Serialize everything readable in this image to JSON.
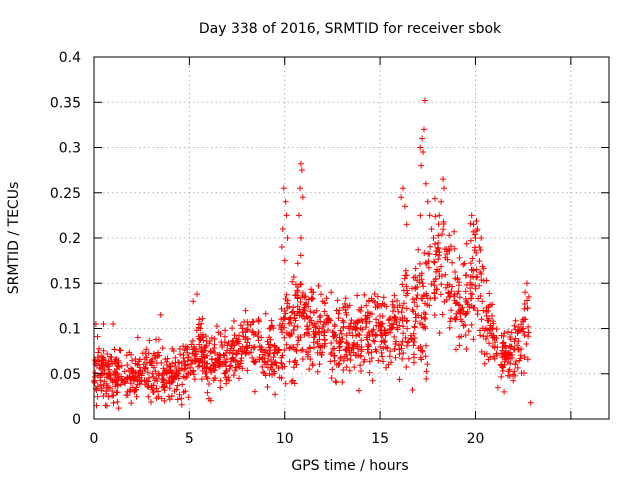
{
  "chart_data": {
    "type": "scatter",
    "title": "Day 338 of 2016, SRMTID for receiver sbok",
    "xlabel": "GPS time / hours",
    "ylabel": "SRMTID / TECUs",
    "xlim": [
      0,
      27
    ],
    "ylim": [
      0,
      0.4
    ],
    "x_ticks": [
      0,
      5,
      10,
      15,
      20
    ],
    "x_tick_labels": [
      "0",
      "5",
      "10",
      "15",
      "20"
    ],
    "y_ticks": [
      0,
      0.05,
      0.1,
      0.15,
      0.2,
      0.25,
      0.3,
      0.35,
      0.4
    ],
    "y_tick_labels": [
      "0",
      "0.05",
      "0.1",
      "0.15",
      "0.2",
      "0.25",
      "0.3",
      "0.35",
      "0.4"
    ],
    "grid": true,
    "marker": "plus",
    "color": "#ff0000",
    "trend": {
      "description": "approximate local mean and scatter of SRMTID over the day (x in hours, y in TECU)",
      "x": [
        0,
        1,
        2,
        3,
        4,
        5,
        5.5,
        6,
        7,
        8,
        9,
        9.5,
        10,
        10.8,
        11.5,
        12.5,
        13.5,
        14.5,
        15.5,
        16.5,
        17.3,
        18,
        18.5,
        19,
        19.5,
        20,
        20.5,
        21,
        21.5,
        22,
        22.5,
        22.8
      ],
      "mean": [
        0.05,
        0.05,
        0.045,
        0.055,
        0.045,
        0.055,
        0.08,
        0.06,
        0.07,
        0.08,
        0.075,
        0.07,
        0.09,
        0.11,
        0.1,
        0.095,
        0.09,
        0.1,
        0.1,
        0.11,
        0.12,
        0.17,
        0.15,
        0.13,
        0.13,
        0.16,
        0.12,
        0.09,
        0.07,
        0.07,
        0.08,
        0.1
      ],
      "spread": [
        0.018,
        0.02,
        0.015,
        0.02,
        0.015,
        0.02,
        0.025,
        0.02,
        0.02,
        0.025,
        0.025,
        0.025,
        0.03,
        0.035,
        0.03,
        0.03,
        0.025,
        0.03,
        0.025,
        0.035,
        0.045,
        0.04,
        0.04,
        0.035,
        0.035,
        0.04,
        0.035,
        0.025,
        0.02,
        0.02,
        0.025,
        0.025
      ]
    },
    "peaks": [
      {
        "x": 9.95,
        "y": 0.255
      },
      {
        "x": 10.05,
        "y": 0.24
      },
      {
        "x": 9.9,
        "y": 0.21
      },
      {
        "x": 10.1,
        "y": 0.225
      },
      {
        "x": 9.85,
        "y": 0.19
      },
      {
        "x": 10.0,
        "y": 0.175
      },
      {
        "x": 10.15,
        "y": 0.2
      },
      {
        "x": 10.85,
        "y": 0.282
      },
      {
        "x": 10.9,
        "y": 0.275
      },
      {
        "x": 10.8,
        "y": 0.255
      },
      {
        "x": 10.95,
        "y": 0.245
      },
      {
        "x": 10.85,
        "y": 0.2
      },
      {
        "x": 10.75,
        "y": 0.225
      },
      {
        "x": 16.2,
        "y": 0.255
      },
      {
        "x": 16.1,
        "y": 0.245
      },
      {
        "x": 16.3,
        "y": 0.235
      },
      {
        "x": 16.4,
        "y": 0.215
      },
      {
        "x": 17.1,
        "y": 0.3
      },
      {
        "x": 17.2,
        "y": 0.31
      },
      {
        "x": 17.3,
        "y": 0.32
      },
      {
        "x": 17.25,
        "y": 0.295
      },
      {
        "x": 17.15,
        "y": 0.28
      },
      {
        "x": 17.35,
        "y": 0.352
      },
      {
        "x": 17.4,
        "y": 0.26
      },
      {
        "x": 17.5,
        "y": 0.24
      },
      {
        "x": 17.6,
        "y": 0.225
      },
      {
        "x": 17.7,
        "y": 0.21
      },
      {
        "x": 17.8,
        "y": 0.2
      },
      {
        "x": 18.3,
        "y": 0.265
      },
      {
        "x": 18.35,
        "y": 0.255
      },
      {
        "x": 18.2,
        "y": 0.24
      },
      {
        "x": 19.8,
        "y": 0.225
      },
      {
        "x": 19.9,
        "y": 0.215
      },
      {
        "x": 20.0,
        "y": 0.2
      },
      {
        "x": 20.1,
        "y": 0.21
      },
      {
        "x": 20.2,
        "y": 0.19
      },
      {
        "x": 20.3,
        "y": 0.2
      },
      {
        "x": 22.7,
        "y": 0.15
      },
      {
        "x": 22.6,
        "y": 0.14
      },
      {
        "x": 22.8,
        "y": 0.135
      },
      {
        "x": 0.1,
        "y": 0.105
      },
      {
        "x": 0.5,
        "y": 0.105
      },
      {
        "x": 1.0,
        "y": 0.105
      },
      {
        "x": 2.3,
        "y": 0.09
      },
      {
        "x": 3.5,
        "y": 0.115
      },
      {
        "x": 5.2,
        "y": 0.13
      },
      {
        "x": 5.4,
        "y": 0.138
      },
      {
        "x": 21.5,
        "y": 0.03
      },
      {
        "x": 22.9,
        "y": 0.018
      },
      {
        "x": 0.6,
        "y": 0.015
      },
      {
        "x": 1.3,
        "y": 0.012
      },
      {
        "x": 3.7,
        "y": 0.02
      },
      {
        "x": 16.7,
        "y": 0.032
      }
    ],
    "n_points": 1600,
    "seed": 338
  }
}
